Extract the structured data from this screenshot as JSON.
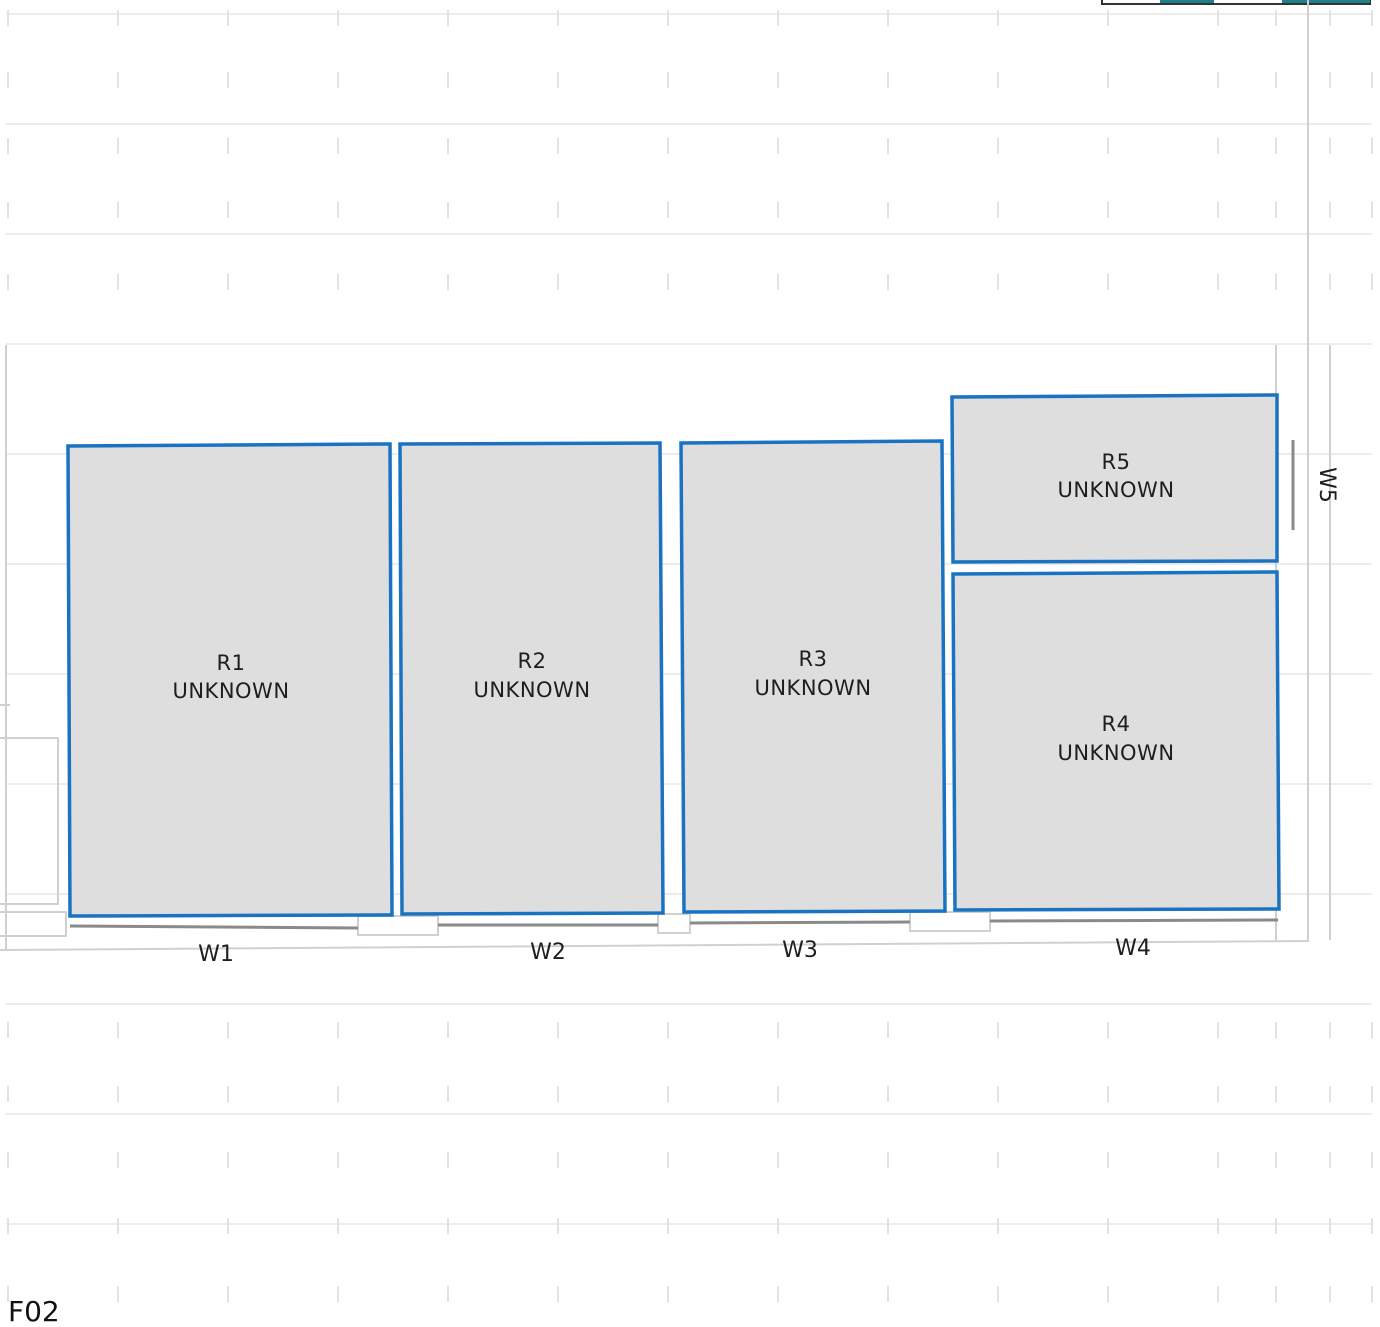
{
  "floor": {
    "label": "F02"
  },
  "rooms": [
    {
      "id": "R1",
      "name": "UNKNOWN"
    },
    {
      "id": "R2",
      "name": "UNKNOWN"
    },
    {
      "id": "R3",
      "name": "UNKNOWN"
    },
    {
      "id": "R4",
      "name": "UNKNOWN"
    },
    {
      "id": "R5",
      "name": "UNKNOWN"
    }
  ],
  "walls": [
    {
      "id": "W1"
    },
    {
      "id": "W2"
    },
    {
      "id": "W3"
    },
    {
      "id": "W4"
    },
    {
      "id": "W5"
    }
  ],
  "colors": {
    "room_fill": "#dedede",
    "room_stroke": "#1a73c2",
    "accent_teal": "#1f7f86"
  }
}
